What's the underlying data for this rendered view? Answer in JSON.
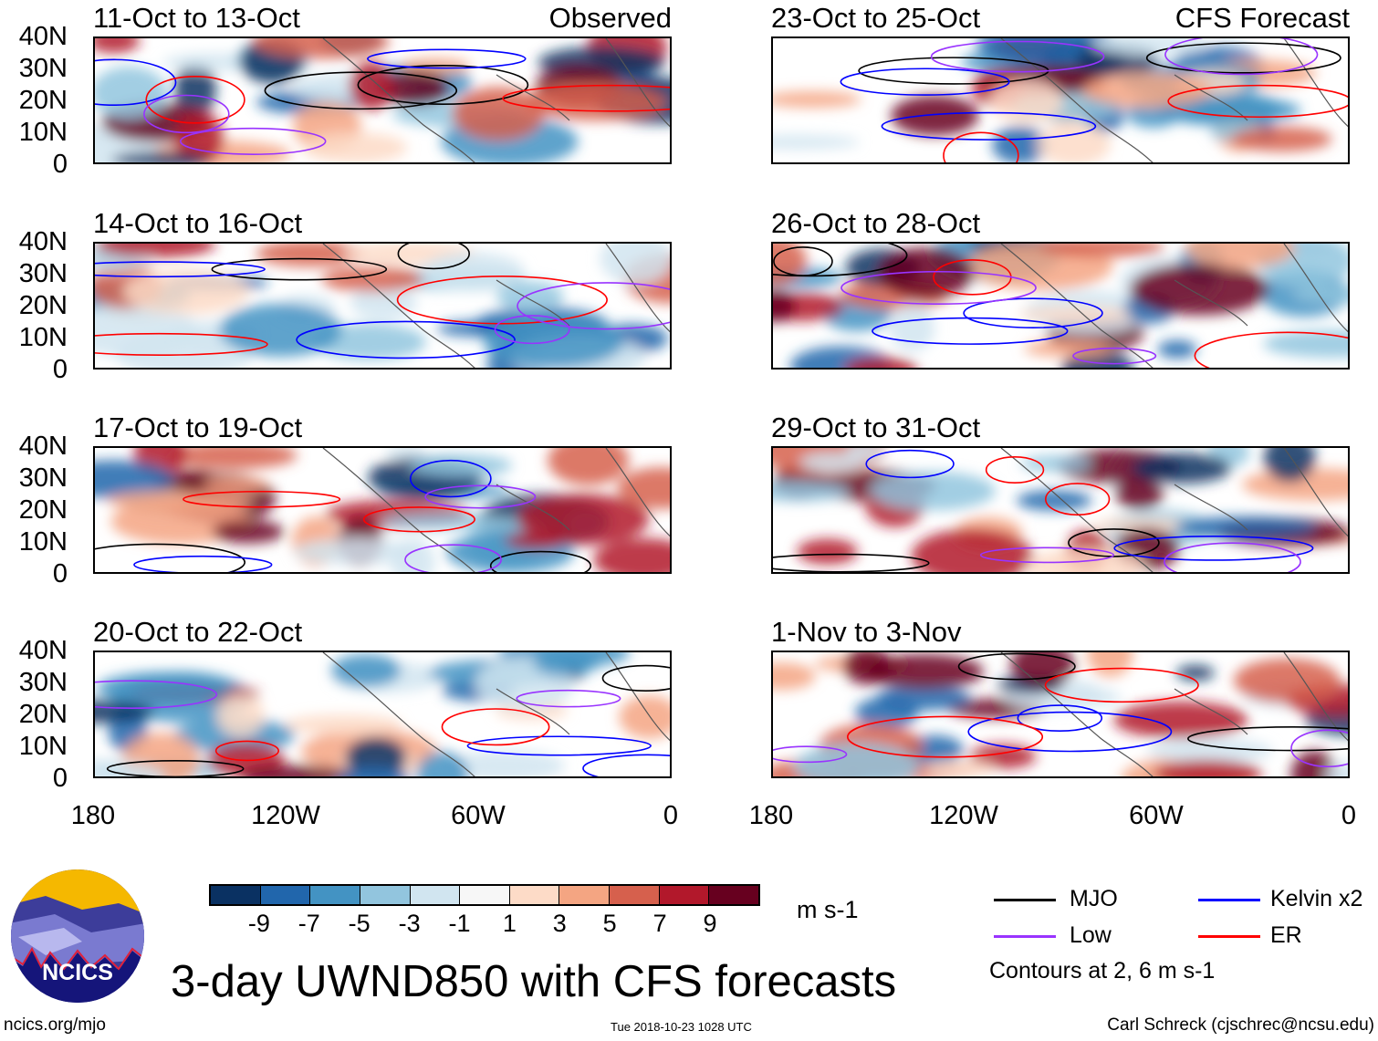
{
  "panels_left": [
    {
      "title": "11-Oct to 13-Oct",
      "tag": "Observed"
    },
    {
      "title": "14-Oct to 16-Oct"
    },
    {
      "title": "17-Oct to 19-Oct"
    },
    {
      "title": "20-Oct to 22-Oct"
    }
  ],
  "panels_right": [
    {
      "title": "23-Oct to 25-Oct",
      "tag": "CFS Forecast"
    },
    {
      "title": "26-Oct to 28-Oct"
    },
    {
      "title": "29-Oct to 31-Oct"
    },
    {
      "title": "1-Nov to 3-Nov"
    }
  ],
  "y_ticks": [
    "40N",
    "30N",
    "20N",
    "10N",
    "0"
  ],
  "x_ticks": [
    "180",
    "120W",
    "60W",
    "0"
  ],
  "colorbar": {
    "colors": [
      "#0a3162",
      "#2166ac",
      "#4393c3",
      "#92c5de",
      "#d1e5f0",
      "#f7f7f7",
      "#fddbc7",
      "#f4a582",
      "#d6604d",
      "#b2182b",
      "#67001f"
    ],
    "labels": [
      "-9",
      "-7",
      "-5",
      "-3",
      "-1",
      "1",
      "3",
      "5",
      "7",
      "9"
    ],
    "units": "m s-1"
  },
  "legend": {
    "items": [
      {
        "label": "MJO",
        "color": "#000000"
      },
      {
        "label": "Kelvin x2",
        "color": "#0000ff"
      },
      {
        "label": "Low",
        "color": "#9933ff"
      },
      {
        "label": "ER",
        "color": "#ff0000"
      }
    ],
    "note": "Contours at 2, 6 m s-1"
  },
  "title": "3-day UWND850 with CFS forecasts",
  "logo_text": "NCICS",
  "footer": {
    "left": "ncics.org/mjo",
    "center": "Tue 2018-10-23 1028 UTC",
    "right": "Carl Schreck (cjschrec@ncsu.edu)"
  }
}
